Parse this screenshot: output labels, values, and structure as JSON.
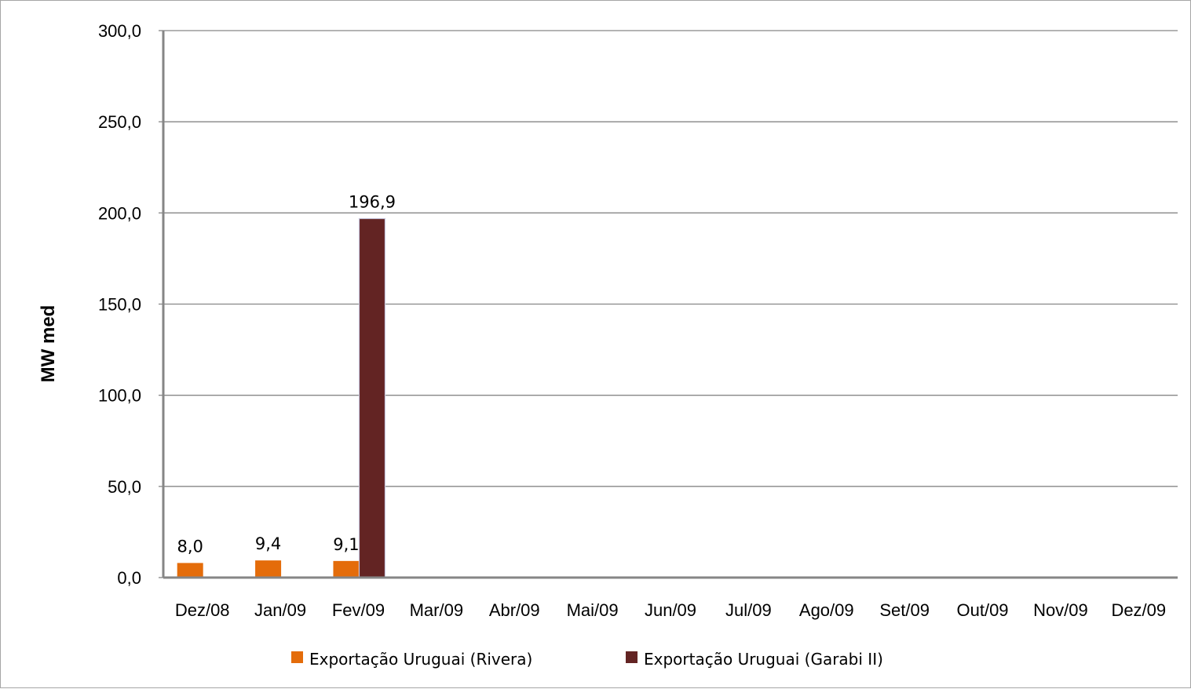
{
  "chart_data": {
    "type": "bar",
    "title": "",
    "xlabel": "",
    "ylabel": "MW med",
    "ylim": [
      0,
      300
    ],
    "yticks": [
      "0,0",
      "50,0",
      "100,0",
      "150,0",
      "200,0",
      "250,0",
      "300,0"
    ],
    "categories": [
      "Dez/08",
      "Jan/09",
      "Fev/09",
      "Mar/09",
      "Abr/09",
      "Mai/09",
      "Jun/09",
      "Jul/09",
      "Ago/09",
      "Set/09",
      "Out/09",
      "Nov/09",
      "Dez/09"
    ],
    "series": [
      {
        "name": "Exportação Uruguai (Rivera)",
        "color": "#e46c0a",
        "values": [
          8.0,
          9.4,
          9.1,
          null,
          null,
          null,
          null,
          null,
          null,
          null,
          null,
          null,
          null
        ],
        "labels": [
          "8,0",
          "9,4",
          "9,1",
          "",
          "",
          "",
          "",
          "",
          "",
          "",
          "",
          "",
          ""
        ]
      },
      {
        "name": "Exportação Uruguai (Garabi II)",
        "color": "#632423",
        "values": [
          null,
          null,
          196.9,
          null,
          null,
          null,
          null,
          null,
          null,
          null,
          null,
          null,
          null
        ],
        "labels": [
          "",
          "",
          "196,9",
          "",
          "",
          "",
          "",
          "",
          "",
          "",
          "",
          "",
          ""
        ]
      }
    ],
    "grid": true,
    "legend": "bottom"
  }
}
